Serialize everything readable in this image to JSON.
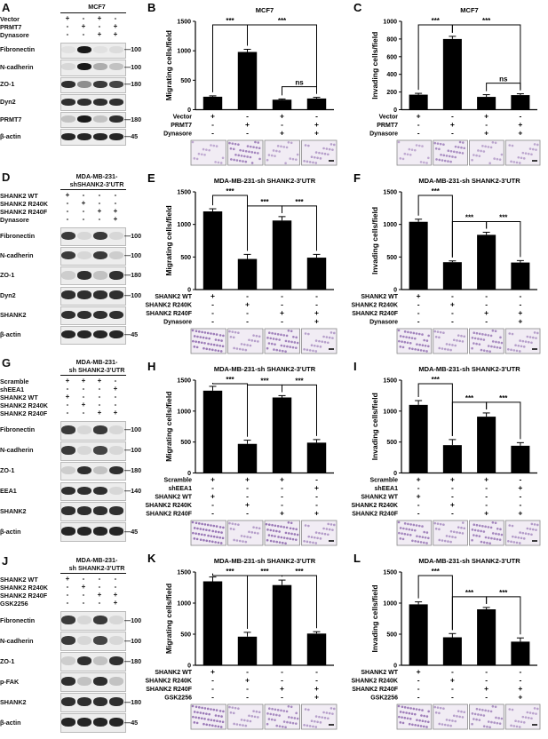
{
  "blots": [
    {
      "id": "A",
      "label": "A",
      "title": "MCF7",
      "title_lines": [
        "MCF7"
      ],
      "conditions": [
        {
          "label": "Vector",
          "symbols": [
            "+",
            "-",
            "+",
            "-"
          ]
        },
        {
          "label": "PRMT7",
          "symbols": [
            "-",
            "+",
            "-",
            "+"
          ]
        },
        {
          "label": "Dynasore",
          "symbols": [
            "-",
            "-",
            "+",
            "+"
          ]
        }
      ],
      "bands": [
        {
          "label": "Fibronectin",
          "mw": "100",
          "intensity": [
            0.05,
            1,
            0.05,
            0.08
          ]
        },
        {
          "label": "N-cadherin",
          "mw": "100",
          "intensity": [
            0.1,
            1,
            0.3,
            0.2
          ]
        },
        {
          "label": "ZO-1",
          "mw": "180",
          "intensity": [
            0.9,
            0.45,
            0.85,
            0.8
          ]
        },
        {
          "label": "Dyn2",
          "mw": "",
          "intensity": [
            0.9,
            0.9,
            0.9,
            0.9
          ]
        },
        {
          "label": "PRMT7",
          "mw": "180",
          "intensity": [
            0.2,
            1,
            0.2,
            0.9
          ]
        },
        {
          "label": "β-actin",
          "mw": "45",
          "intensity": [
            0.95,
            0.95,
            0.95,
            0.95
          ]
        }
      ]
    },
    {
      "id": "D",
      "label": "D",
      "title": "MDA-MB-231-shSHANK2-3'UTR",
      "title_lines": [
        "MDA-MB-231-",
        "shSHANK2-3'UTR"
      ],
      "conditions": [
        {
          "label": "SHANK2 WT",
          "symbols": [
            "+",
            "-",
            "-",
            "-"
          ]
        },
        {
          "label": "SHANK2 R240K",
          "symbols": [
            "-",
            "+",
            "-",
            "-"
          ]
        },
        {
          "label": "SHANK2 R240F",
          "symbols": [
            "-",
            "-",
            "+",
            "+"
          ]
        },
        {
          "label": "Dynasore",
          "symbols": [
            "-",
            "-",
            "-",
            "+"
          ]
        }
      ],
      "bands": [
        {
          "label": "Fibronectin",
          "mw": "100",
          "intensity": [
            0.85,
            0.1,
            0.85,
            0.1
          ]
        },
        {
          "label": "N-cadherin",
          "mw": "100",
          "intensity": [
            0.85,
            0.1,
            0.85,
            0.15
          ]
        },
        {
          "label": "ZO-1",
          "mw": "180",
          "intensity": [
            0.15,
            0.9,
            0.2,
            0.9
          ]
        },
        {
          "label": "Dyn2",
          "mw": "100",
          "intensity": [
            0.9,
            0.9,
            0.9,
            0.9
          ]
        },
        {
          "label": "SHANK2",
          "mw": "",
          "intensity": [
            0.9,
            0.9,
            0.9,
            0.9
          ]
        },
        {
          "label": "β-actin",
          "mw": "45",
          "intensity": [
            0.95,
            0.95,
            0.95,
            0.95
          ]
        }
      ]
    },
    {
      "id": "G",
      "label": "G",
      "title": "MDA-MB-231-sh SHANK2-3'UTR",
      "title_lines": [
        "MDA-MB-231-",
        "sh SHANK2-3'UTR"
      ],
      "conditions": [
        {
          "label": "Scramble",
          "symbols": [
            "+",
            "+",
            "+",
            "-"
          ]
        },
        {
          "label": "shEEA1",
          "symbols": [
            "-",
            "-",
            "-",
            "+"
          ]
        },
        {
          "label": "SHANK2 WT",
          "symbols": [
            "+",
            "-",
            "-",
            "-"
          ]
        },
        {
          "label": "SHANK2 R240K",
          "symbols": [
            "-",
            "+",
            "-",
            "-"
          ]
        },
        {
          "label": "SHANK2 R240F",
          "symbols": [
            "-",
            "-",
            "+",
            "+"
          ]
        }
      ],
      "bands": [
        {
          "label": "Fibronectin",
          "mw": "100",
          "intensity": [
            0.85,
            0.1,
            0.85,
            0.1
          ]
        },
        {
          "label": "N-cadherin",
          "mw": "100",
          "intensity": [
            0.85,
            0.1,
            0.8,
            0.1
          ]
        },
        {
          "label": "ZO-1",
          "mw": "180",
          "intensity": [
            0.15,
            0.9,
            0.2,
            0.9
          ]
        },
        {
          "label": "EEA1",
          "mw": "140",
          "intensity": [
            0.9,
            0.9,
            0.9,
            0.1
          ]
        },
        {
          "label": "SHANK2",
          "mw": "",
          "intensity": [
            0.9,
            0.9,
            0.9,
            0.9
          ]
        },
        {
          "label": "β-actin",
          "mw": "45",
          "intensity": [
            0.95,
            0.95,
            0.95,
            0.95
          ]
        }
      ]
    },
    {
      "id": "J",
      "label": "J",
      "title": "MDA-MB-231-sh SHANK2-3'UTR",
      "title_lines": [
        "MDA-MB-231-",
        "sh SHANK2-3'UTR"
      ],
      "conditions": [
        {
          "label": "SHANK2 WT",
          "symbols": [
            "+",
            "-",
            "-",
            "-"
          ]
        },
        {
          "label": "SHANK2 R240K",
          "symbols": [
            "-",
            "+",
            "-",
            "-"
          ]
        },
        {
          "label": "SHANK2 R240F",
          "symbols": [
            "-",
            "-",
            "+",
            "+"
          ]
        },
        {
          "label": "GSK2256",
          "symbols": [
            "-",
            "-",
            "-",
            "+"
          ]
        }
      ],
      "bands": [
        {
          "label": "Fibronectin",
          "mw": "100",
          "intensity": [
            0.85,
            0.1,
            0.85,
            0.1
          ]
        },
        {
          "label": "N-cadherin",
          "mw": "100",
          "intensity": [
            0.85,
            0.1,
            0.8,
            0.1
          ]
        },
        {
          "label": "ZO-1",
          "mw": "180",
          "intensity": [
            0.15,
            0.9,
            0.2,
            0.9
          ]
        },
        {
          "label": "p-FAK",
          "mw": "",
          "intensity": [
            0.9,
            0.2,
            0.9,
            0.2
          ]
        },
        {
          "label": "SHANK2",
          "mw": "180",
          "intensity": [
            0.9,
            0.9,
            0.9,
            0.9
          ]
        },
        {
          "label": "β-actin",
          "mw": "45",
          "intensity": [
            0.95,
            0.95,
            0.95,
            0.95
          ]
        }
      ]
    }
  ],
  "chart_data": [
    {
      "id": "B",
      "label": "B",
      "type": "bar",
      "title": "MCF7",
      "ylabel": "Migrating cells/field",
      "yticks": [
        0,
        500,
        1000,
        1500
      ],
      "ylim": [
        0,
        1500
      ],
      "values": [
        220,
        980,
        170,
        190
      ],
      "errors": [
        15,
        45,
        12,
        20
      ],
      "conditions": [
        {
          "label": "Vector",
          "symbols": [
            "+",
            "-",
            "+",
            "-"
          ]
        },
        {
          "label": "PRMT7",
          "symbols": [
            "-",
            "+",
            "-",
            "+"
          ]
        },
        {
          "label": "Dynasore",
          "symbols": [
            "-",
            "-",
            "+",
            "+"
          ]
        }
      ],
      "sig": [
        {
          "from": 0,
          "to": 1,
          "text": "***",
          "level": 0
        },
        {
          "from": 1,
          "to": 3,
          "text": "***",
          "level": 0
        },
        {
          "from": 2,
          "to": 3,
          "text": "ns",
          "level": 1
        }
      ],
      "micro_intensity": [
        0.15,
        0.6,
        0.2,
        0.3
      ]
    },
    {
      "id": "C",
      "label": "C",
      "type": "bar",
      "title": "MCF7",
      "ylabel": "Invading cells/field",
      "yticks": [
        0,
        200,
        400,
        600,
        800,
        1000
      ],
      "ylim": [
        0,
        1000
      ],
      "values": [
        170,
        800,
        145,
        165
      ],
      "errors": [
        15,
        30,
        25,
        15
      ],
      "conditions": [
        {
          "label": "Vector",
          "symbols": [
            "+",
            "-",
            "+",
            "-"
          ]
        },
        {
          "label": "PRMT7",
          "symbols": [
            "-",
            "+",
            "-",
            "+"
          ]
        },
        {
          "label": "Dynasore",
          "symbols": [
            "-",
            "-",
            "+",
            "+"
          ]
        }
      ],
      "sig": [
        {
          "from": 0,
          "to": 1,
          "text": "***",
          "level": 0
        },
        {
          "from": 1,
          "to": 3,
          "text": "***",
          "level": 0
        },
        {
          "from": 2,
          "to": 3,
          "text": "ns",
          "level": 1
        }
      ],
      "micro_intensity": [
        0.15,
        0.5,
        0.2,
        0.2
      ]
    },
    {
      "id": "E",
      "label": "E",
      "type": "bar",
      "title": "MDA-MB-231-sh SHANK2-3'UTR",
      "ylabel": "Migrating cells/field",
      "yticks": [
        0,
        500,
        1000,
        1500
      ],
      "ylim": [
        0,
        1500
      ],
      "values": [
        1200,
        470,
        1060,
        490
      ],
      "errors": [
        40,
        70,
        60,
        50
      ],
      "conditions": [
        {
          "label": "SHANK2 WT",
          "symbols": [
            "+",
            "-",
            "-",
            "-"
          ]
        },
        {
          "label": "SHANK2 R240K",
          "symbols": [
            "-",
            "+",
            "-",
            "-"
          ]
        },
        {
          "label": "SHANK2 R240F",
          "symbols": [
            "-",
            "-",
            "+",
            "+"
          ]
        },
        {
          "label": "Dynasore",
          "symbols": [
            "-",
            "-",
            "-",
            "+"
          ]
        }
      ],
      "sig": [
        {
          "from": 0,
          "to": 1,
          "text": "***",
          "level": 0
        },
        {
          "from": 1,
          "to": 2,
          "text": "***",
          "level": 1
        },
        {
          "from": 2,
          "to": 3,
          "text": "***",
          "level": 1
        }
      ],
      "micro_intensity": [
        0.75,
        0.3,
        0.65,
        0.3
      ]
    },
    {
      "id": "F",
      "label": "F",
      "type": "bar",
      "title": "MDA-MB-231-sh SHANK2-3'UTR",
      "ylabel": "Invading cells/field",
      "yticks": [
        0,
        500,
        1000,
        1500
      ],
      "ylim": [
        0,
        1500
      ],
      "values": [
        1040,
        420,
        840,
        415
      ],
      "errors": [
        40,
        20,
        40,
        30
      ],
      "conditions": [
        {
          "label": "SHANK2 WT",
          "symbols": [
            "+",
            "-",
            "-",
            "-"
          ]
        },
        {
          "label": "SHANK2 R240K",
          "symbols": [
            "-",
            "+",
            "-",
            "-"
          ]
        },
        {
          "label": "SHANK2 R240F",
          "symbols": [
            "-",
            "-",
            "+",
            "+"
          ]
        },
        {
          "label": "Dynasore",
          "symbols": [
            "-",
            "-",
            "-",
            "+"
          ]
        }
      ],
      "sig": [
        {
          "from": 0,
          "to": 1,
          "text": "***",
          "level": 0
        },
        {
          "from": 1,
          "to": 2,
          "text": "***",
          "level": 1
        },
        {
          "from": 2,
          "to": 3,
          "text": "***",
          "level": 1
        }
      ],
      "micro_intensity": [
        0.65,
        0.3,
        0.55,
        0.3
      ]
    },
    {
      "id": "H",
      "label": "H",
      "type": "bar",
      "title": "MDA-MB-231-sh SHANK2-3'UTR",
      "ylabel": "Migrating cells/field",
      "yticks": [
        0,
        500,
        1000,
        1500
      ],
      "ylim": [
        0,
        1500
      ],
      "values": [
        1330,
        470,
        1220,
        490
      ],
      "errors": [
        70,
        60,
        30,
        50
      ],
      "conditions": [
        {
          "label": "Scramble",
          "symbols": [
            "+",
            "+",
            "+",
            "-"
          ]
        },
        {
          "label": "shEEA1",
          "symbols": [
            "-",
            "-",
            "-",
            "+"
          ]
        },
        {
          "label": "SHANK2 WT",
          "symbols": [
            "+",
            "-",
            "-",
            "-"
          ]
        },
        {
          "label": "SHANK2 R240K",
          "symbols": [
            "-",
            "+",
            "-",
            "-"
          ]
        },
        {
          "label": "SHANK2 R240F",
          "symbols": [
            "-",
            "-",
            "+",
            "+"
          ]
        }
      ],
      "sig": [
        {
          "from": 0,
          "to": 1,
          "text": "***",
          "level": 0
        },
        {
          "from": 1,
          "to": 2,
          "text": "***",
          "level": 1
        },
        {
          "from": 2,
          "to": 3,
          "text": "***",
          "level": 1
        }
      ],
      "micro_intensity": [
        0.8,
        0.3,
        0.75,
        0.35
      ]
    },
    {
      "id": "I",
      "label": "I",
      "type": "bar",
      "title": "MDA-MB-231-sh SHANK2-3'UTR",
      "ylabel": "Invading cells/field",
      "yticks": [
        0,
        500,
        1000,
        1500
      ],
      "ylim": [
        0,
        1500
      ],
      "values": [
        1100,
        450,
        910,
        440
      ],
      "errors": [
        70,
        90,
        60,
        50
      ],
      "conditions": [
        {
          "label": "Scramble",
          "symbols": [
            "+",
            "+",
            "+",
            "-"
          ]
        },
        {
          "label": "shEEA1",
          "symbols": [
            "-",
            "-",
            "-",
            "+"
          ]
        },
        {
          "label": "SHANK2 WT",
          "symbols": [
            "+",
            "-",
            "-",
            "-"
          ]
        },
        {
          "label": "SHANK2 R240K",
          "symbols": [
            "-",
            "+",
            "-",
            "-"
          ]
        },
        {
          "label": "SHANK2 R240F",
          "symbols": [
            "-",
            "-",
            "+",
            "+"
          ]
        }
      ],
      "sig": [
        {
          "from": 0,
          "to": 1,
          "text": "***",
          "level": 0
        },
        {
          "from": 1,
          "to": 2,
          "text": "***",
          "level": 1
        },
        {
          "from": 2,
          "to": 3,
          "text": "***",
          "level": 1
        }
      ],
      "micro_intensity": [
        0.6,
        0.35,
        0.6,
        0.35
      ]
    },
    {
      "id": "K",
      "label": "K",
      "type": "bar",
      "title": "MDA-MB-231-sh SHANK2-3'UTR",
      "ylabel": "Migrating cells/field",
      "yticks": [
        0,
        500,
        1000,
        1500
      ],
      "ylim": [
        0,
        1500
      ],
      "values": [
        1350,
        460,
        1290,
        510
      ],
      "errors": [
        70,
        70,
        80,
        30
      ],
      "conditions": [
        {
          "label": "SHANK2 WT",
          "symbols": [
            "+",
            "-",
            "-",
            "-"
          ]
        },
        {
          "label": "SHANK2 R240K",
          "symbols": [
            "-",
            "+",
            "-",
            "-"
          ]
        },
        {
          "label": "SHANK2 R240F",
          "symbols": [
            "-",
            "-",
            "+",
            "+"
          ]
        },
        {
          "label": "GSK2256",
          "symbols": [
            "-",
            "-",
            "-",
            "+"
          ]
        }
      ],
      "sig": [
        {
          "from": 0,
          "to": 1,
          "text": "***",
          "level": 0
        },
        {
          "from": 1,
          "to": 2,
          "text": "***",
          "level": 1
        },
        {
          "from": 2,
          "to": 3,
          "text": "***",
          "level": 1
        }
      ],
      "micro_intensity": [
        0.75,
        0.3,
        0.55,
        0.3
      ]
    },
    {
      "id": "L",
      "label": "L",
      "type": "bar",
      "title": "MDA-MB-231-sh SHANK2-3'UTR",
      "ylabel": "Invading cells/field",
      "yticks": [
        0,
        500,
        1000,
        1500
      ],
      "ylim": [
        0,
        1500
      ],
      "values": [
        980,
        450,
        900,
        380
      ],
      "errors": [
        40,
        60,
        30,
        60
      ],
      "conditions": [
        {
          "label": "SHANK2 WT",
          "symbols": [
            "+",
            "-",
            "-",
            "-"
          ]
        },
        {
          "label": "SHANK2 R240K",
          "symbols": [
            "-",
            "+",
            "-",
            "-"
          ]
        },
        {
          "label": "SHANK2 R240F",
          "symbols": [
            "-",
            "-",
            "+",
            "+"
          ]
        },
        {
          "label": "GSK2256",
          "symbols": [
            "-",
            "-",
            "-",
            "+"
          ]
        }
      ],
      "sig": [
        {
          "from": 0,
          "to": 1,
          "text": "***",
          "level": 0
        },
        {
          "from": 1,
          "to": 2,
          "text": "***",
          "level": 1
        },
        {
          "from": 2,
          "to": 3,
          "text": "***",
          "level": 1
        }
      ],
      "micro_intensity": [
        0.7,
        0.3,
        0.45,
        0.25
      ]
    }
  ],
  "colors": {
    "bar": "#000000",
    "micrograph_stain": "#7a4fa0",
    "micrograph_bg": "#f1ecf4"
  }
}
